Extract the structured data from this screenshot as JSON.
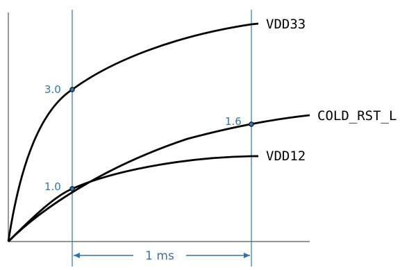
{
  "signals": {
    "vdd33": "VDD33",
    "cold_rst_l": "COLD_RST_L",
    "vdd12": "VDD12"
  },
  "markers": {
    "vdd33_value": "3.0",
    "cold_rst_value": "1.6",
    "vdd12_value": "1.0"
  },
  "dimension": {
    "label": "1 ms"
  },
  "colors": {
    "curve": "#000000",
    "guide": "#2e74b5",
    "axis": "#555555"
  }
}
